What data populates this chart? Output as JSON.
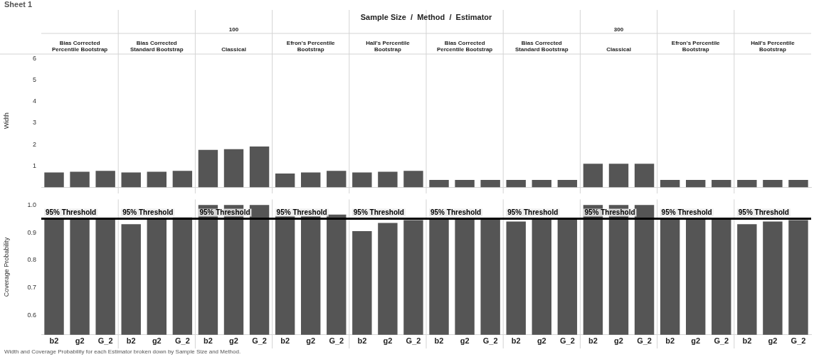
{
  "chart_data": [
    {
      "type": "bar",
      "title": "Sheet 1",
      "subtitle": "Sample Size  /  Method  /  Estimator",
      "ylabel": "Width",
      "annotations": [
        "100",
        "300",
        "Bias Corrected Percentile Bootstrap",
        "Bias Corrected Standard Bootstrap",
        "Classical",
        "Efron's Percentile Bootstrap",
        "Hall's Percentile Bootstrap",
        "Bias Corrected Percentile Bootstrap",
        "Bias Corrected Standard Bootstrap",
        "Classical",
        "Efron's Percentile Bootstrap",
        "Hall's Percentile Bootstrap"
      ],
      "categories": [
        null,
        null,
        null,
        null,
        null,
        null,
        null,
        null,
        null,
        null,
        null,
        null,
        null,
        null,
        null,
        null,
        null,
        null,
        null,
        null,
        null,
        null,
        null,
        null,
        null,
        null,
        null,
        null,
        null,
        null
      ],
      "values": [
        0.7,
        0.73,
        0.77,
        0.7,
        0.73,
        0.77,
        1.75,
        1.78,
        1.9,
        0.65,
        0.7,
        0.77,
        0.7,
        0.73,
        0.77,
        0.35,
        0.35,
        0.35,
        0.35,
        0.35,
        0.35,
        1.1,
        1.1,
        1.1,
        0.35,
        0.35,
        0.35,
        0.35,
        0.35,
        0.35
      ],
      "color": "#555555",
      "ylim": [
        0,
        6.2
      ],
      "yticks": [
        1,
        2,
        3,
        4,
        5,
        6
      ],
      "grid": false,
      "tick_labels": "y"
    },
    {
      "type": "bar",
      "ylabel": "Coverage Probability",
      "annotations": [
        "Width and Coverage Probability for each Estimator broken down by Sample Size and Method."
      ],
      "categories": [
        "b2",
        "g2",
        "G_2",
        "b2",
        "g2",
        "G_2",
        "b2",
        "g2",
        "G_2",
        "b2",
        "g2",
        "G_2",
        "b2",
        "g2",
        "G_2",
        "b2",
        "g2",
        "G_2",
        "b2",
        "g2",
        "G_2",
        "b2",
        "g2",
        "G_2",
        "b2",
        "g2",
        "G_2",
        "b2",
        "g2",
        "G_2"
      ],
      "values": [
        0.95,
        0.95,
        0.95,
        0.93,
        0.95,
        0.955,
        1.0,
        1.0,
        1.0,
        0.96,
        0.96,
        0.965,
        0.905,
        0.935,
        0.945,
        0.95,
        0.95,
        0.95,
        0.94,
        0.95,
        0.95,
        1.0,
        1.0,
        1.0,
        0.95,
        0.95,
        0.95,
        0.93,
        0.94,
        0.945
      ],
      "color": "#555555",
      "ylim": [
        0.53,
        1.02
      ],
      "yticks": [
        0.6,
        0.7,
        0.8,
        0.9,
        {
          "value": 1,
          "label": "1.0"
        }
      ],
      "grid": false,
      "ref_lines": [
        {
          "axis": "y",
          "value": 0.95,
          "label": "95% Threshold",
          "color": "#000000"
        }
      ]
    }
  ]
}
